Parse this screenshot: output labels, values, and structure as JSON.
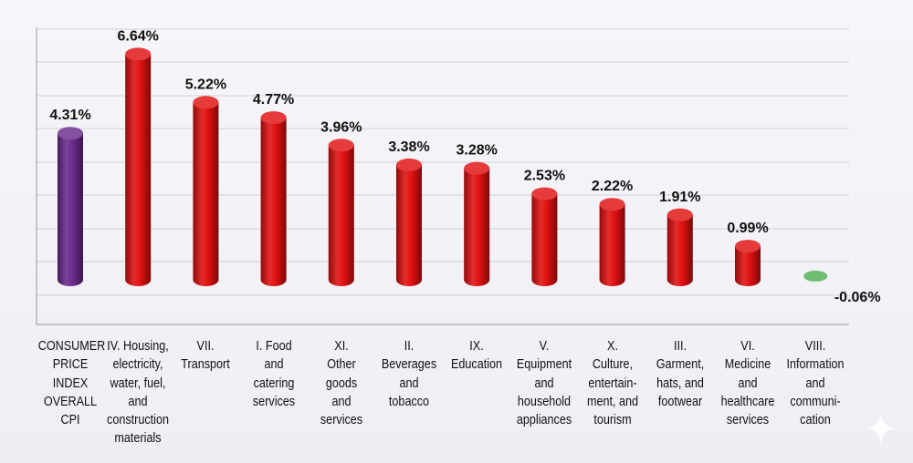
{
  "chart_data": {
    "type": "bar",
    "categories": [
      "CONSUMER PRICE INDEX OVERALL CPI",
      "IV. Housing, electricity, water, fuel, and construction materials",
      "VII. Transport",
      "I. Food and catering services",
      "XI. Other goods and services",
      "II. Beverages and tobacco",
      "IX. Education",
      "V. Equipment and household appliances",
      "X. Culture, entertainment, and tourism",
      "III. Garment, hats, and footwear",
      "VI. Medicine and healthcare services",
      "VIII. Information and communication"
    ],
    "category_lines": [
      [
        "CONSUMER",
        "PRICE",
        "INDEX",
        "OVERALL",
        "CPI"
      ],
      [
        "IV. Housing,",
        "electricity,",
        "water, fuel,",
        "and",
        "construction",
        "materials"
      ],
      [
        "VII.",
        "Transport"
      ],
      [
        "I. Food",
        "and",
        "catering",
        "services"
      ],
      [
        "XI.",
        "Other",
        "goods",
        "and",
        "services"
      ],
      [
        "II.",
        "Beverages",
        "and",
        "tobacco"
      ],
      [
        "IX.",
        "Education"
      ],
      [
        "V.",
        "Equipment",
        "and",
        "household",
        "appliances"
      ],
      [
        "X.",
        "Culture,",
        "entertain-",
        "ment, and",
        "tourism"
      ],
      [
        "III.",
        "Garment,",
        "hats, and",
        "footwear"
      ],
      [
        "VI.",
        "Medicine",
        "and",
        "healthcare",
        "services"
      ],
      [
        "VIII.",
        "Information",
        "and",
        "communi-",
        "cation"
      ]
    ],
    "values": [
      4.31,
      6.64,
      5.22,
      4.77,
      3.96,
      3.38,
      3.28,
      2.53,
      2.22,
      1.91,
      0.99,
      -0.06
    ],
    "value_labels": [
      "4.31%",
      "6.64%",
      "5.22%",
      "4.77%",
      "3.96%",
      "3.38%",
      "3.28%",
      "2.53%",
      "2.22%",
      "1.91%",
      "0.99%",
      "-0.06%"
    ],
    "colors": {
      "overall": "#6a2a8c",
      "increase": "#e01010",
      "decrease": "#4caf50"
    },
    "bar_styles": [
      "overall",
      "increase",
      "increase",
      "increase",
      "increase",
      "increase",
      "increase",
      "increase",
      "increase",
      "increase",
      "increase",
      "decrease"
    ],
    "ylim": [
      0,
      7.5
    ],
    "grid": true,
    "legend": "none",
    "title": "",
    "xlabel": "",
    "ylabel": ""
  }
}
